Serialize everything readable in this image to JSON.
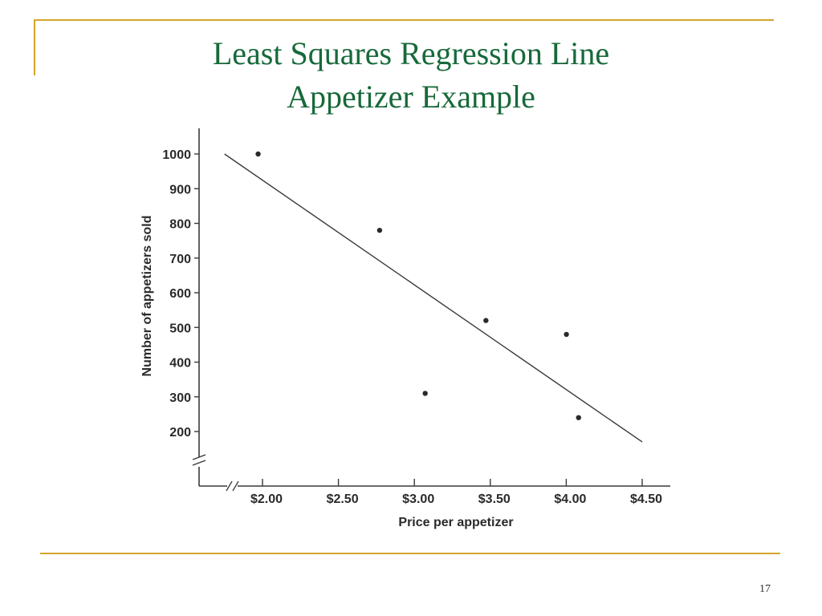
{
  "slide": {
    "title_line_1": "Least Squares Regression Line",
    "title_line_2": "Appetizer Example",
    "page_number": "17",
    "accent_color": "#d4a52a",
    "title_color": "#17693a"
  },
  "chart_data": {
    "type": "scatter",
    "title": "",
    "xlabel": "Price per appetizer",
    "ylabel": "Number of appetizers sold",
    "xlim": [
      1.75,
      4.5
    ],
    "ylim": [
      200,
      1000
    ],
    "x_ticks": [
      {
        "value": 2.0,
        "label": "$2.00"
      },
      {
        "value": 2.5,
        "label": "$2.50"
      },
      {
        "value": 3.0,
        "label": "$3.00"
      },
      {
        "value": 3.5,
        "label": "$3.50"
      },
      {
        "value": 4.0,
        "label": "$4.00"
      },
      {
        "value": 4.5,
        "label": "$4.50"
      }
    ],
    "y_ticks": [
      {
        "value": 1000,
        "label": "1000"
      },
      {
        "value": 900,
        "label": "900"
      },
      {
        "value": 800,
        "label": "800"
      },
      {
        "value": 700,
        "label": "700"
      },
      {
        "value": 600,
        "label": "600"
      },
      {
        "value": 500,
        "label": "500"
      },
      {
        "value": 400,
        "label": "400"
      },
      {
        "value": 300,
        "label": "300"
      },
      {
        "value": 200,
        "label": "200"
      }
    ],
    "points": [
      {
        "x": 1.95,
        "y": 1000
      },
      {
        "x": 2.75,
        "y": 780
      },
      {
        "x": 3.05,
        "y": 310
      },
      {
        "x": 3.45,
        "y": 520
      },
      {
        "x": 3.98,
        "y": 480
      },
      {
        "x": 4.06,
        "y": 240
      }
    ],
    "regression_line": [
      {
        "x": 1.75,
        "y": 1000
      },
      {
        "x": 4.5,
        "y": 170
      }
    ],
    "axis_breaks": true,
    "grid": false,
    "legend": "none"
  }
}
